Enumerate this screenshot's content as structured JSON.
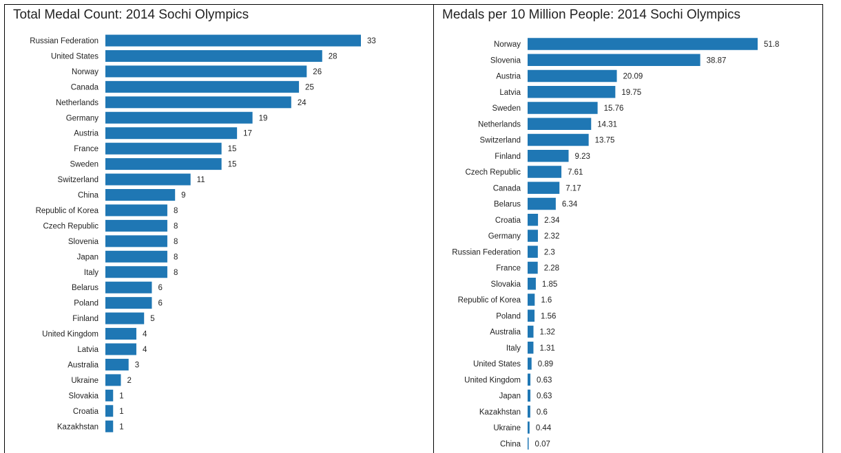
{
  "chart_data": [
    {
      "type": "bar",
      "orientation": "horizontal",
      "title": "Total Medal Count: 2014 Sochi Olympics",
      "categories": [
        "Russian Federation",
        "United States",
        "Norway",
        "Canada",
        "Netherlands",
        "Germany",
        "Austria",
        "France",
        "Sweden",
        "Switzerland",
        "China",
        "Republic of Korea",
        "Czech Republic",
        "Slovenia",
        "Japan",
        "Italy",
        "Belarus",
        "Poland",
        "Finland",
        "United Kingdom",
        "Latvia",
        "Australia",
        "Ukraine",
        "Slovakia",
        "Croatia",
        "Kazakhstan"
      ],
      "values": [
        33,
        28,
        26,
        25,
        24,
        19,
        17,
        15,
        15,
        11,
        9,
        8,
        8,
        8,
        8,
        8,
        6,
        6,
        5,
        4,
        4,
        3,
        2,
        1,
        1,
        1
      ],
      "value_labels": [
        "33",
        "28",
        "26",
        "25",
        "24",
        "19",
        "17",
        "15",
        "15",
        "11",
        "9",
        "8",
        "8",
        "8",
        "8",
        "8",
        "6",
        "6",
        "5",
        "4",
        "4",
        "3",
        "2",
        "1",
        "1",
        "1"
      ],
      "xlim": [
        0,
        33
      ],
      "bar_color": "#1f77b4",
      "grid": false
    },
    {
      "type": "bar",
      "orientation": "horizontal",
      "title": "Medals per 10 Million People: 2014 Sochi Olympics",
      "categories": [
        "Norway",
        "Slovenia",
        "Austria",
        "Latvia",
        "Sweden",
        "Netherlands",
        "Switzerland",
        "Finland",
        "Czech Republic",
        "Canada",
        "Belarus",
        "Croatia",
        "Germany",
        "Russian Federation",
        "France",
        "Slovakia",
        "Republic of Korea",
        "Poland",
        "Australia",
        "Italy",
        "United States",
        "United Kingdom",
        "Japan",
        "Kazakhstan",
        "Ukraine",
        "China"
      ],
      "values": [
        51.8,
        38.87,
        20.09,
        19.75,
        15.76,
        14.31,
        13.75,
        9.23,
        7.61,
        7.17,
        6.34,
        2.34,
        2.32,
        2.3,
        2.28,
        1.85,
        1.6,
        1.56,
        1.32,
        1.31,
        0.89,
        0.63,
        0.63,
        0.6,
        0.44,
        0.07
      ],
      "value_labels": [
        "51.8",
        "38.87",
        "20.09",
        "19.75",
        "15.76",
        "14.31",
        "13.75",
        "9.23",
        "7.61",
        "7.17",
        "6.34",
        "2.34",
        "2.32",
        "2.3",
        "2.28",
        "1.85",
        "1.6",
        "1.56",
        "1.32",
        "1.31",
        "0.89",
        "0.63",
        "0.63",
        "0.6",
        "0.44",
        "0.07"
      ],
      "xlim": [
        0,
        51.8
      ],
      "bar_color": "#1f77b4",
      "grid": false
    }
  ]
}
